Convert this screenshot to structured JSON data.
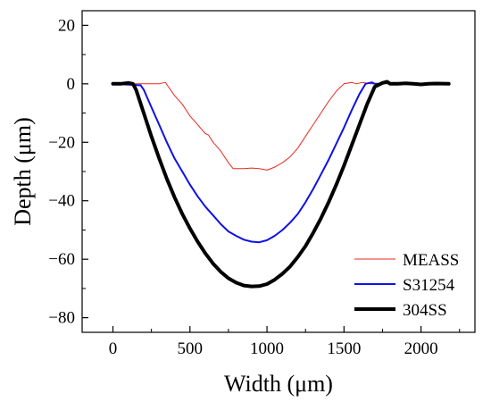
{
  "chart_data": {
    "type": "line",
    "xlabel": "Width (μm)",
    "ylabel": "Depth (μm)",
    "xlim": [
      -200,
      2350
    ],
    "ylim": [
      -85,
      25
    ],
    "x_ticks": [
      0,
      500,
      1000,
      1500,
      2000
    ],
    "y_ticks": [
      20,
      0,
      -20,
      -40,
      -60,
      -80
    ],
    "legend_position": "bottom-right",
    "grid": false,
    "series": [
      {
        "name": "MEASS",
        "color": "#e8281c",
        "line_width": 1,
        "x": [
          0,
          100,
          200,
          300,
          340,
          360,
          400,
          450,
          500,
          550,
          600,
          620,
          650,
          700,
          750,
          780,
          800,
          850,
          900,
          950,
          1000,
          1050,
          1100,
          1150,
          1200,
          1250,
          1300,
          1350,
          1400,
          1450,
          1500,
          1550,
          1580,
          1620,
          1670,
          1700,
          1750,
          1780,
          1850,
          2000,
          2180
        ],
        "y": [
          0,
          0,
          0,
          0,
          0.5,
          -1,
          -4,
          -7,
          -11,
          -14,
          -17,
          -17.5,
          -20,
          -23,
          -27,
          -29,
          -29,
          -29,
          -28.8,
          -29,
          -29.5,
          -28.5,
          -27,
          -25,
          -22,
          -18,
          -14,
          -10,
          -6,
          -2.5,
          0,
          0.5,
          0,
          0.5,
          0,
          0,
          0,
          0,
          0,
          0,
          0
        ]
      },
      {
        "name": "S31254",
        "color": "#1010e6",
        "line_width": 2,
        "x": [
          0,
          100,
          180,
          200,
          250,
          300,
          350,
          400,
          450,
          500,
          550,
          600,
          650,
          700,
          750,
          800,
          850,
          900,
          950,
          1000,
          1050,
          1100,
          1150,
          1200,
          1250,
          1300,
          1350,
          1400,
          1450,
          1500,
          1550,
          1600,
          1640,
          1680,
          1700,
          1720
        ],
        "y": [
          0,
          -0.3,
          -0.5,
          -2,
          -8,
          -14,
          -20,
          -25.5,
          -30,
          -34.5,
          -38.5,
          -42,
          -45,
          -48,
          -50.5,
          -52,
          -53.3,
          -54,
          -54.2,
          -53.5,
          -52,
          -50,
          -47.5,
          -44.5,
          -40.5,
          -36,
          -31,
          -26,
          -20.5,
          -15,
          -9,
          -3.5,
          0,
          0.5,
          0,
          0
        ]
      },
      {
        "name": "304SS",
        "color": "#000000",
        "line_width": 4,
        "x": [
          0,
          50,
          100,
          130,
          150,
          200,
          250,
          300,
          350,
          400,
          450,
          500,
          550,
          600,
          650,
          700,
          750,
          800,
          850,
          900,
          950,
          1000,
          1050,
          1100,
          1150,
          1200,
          1250,
          1300,
          1350,
          1400,
          1450,
          1500,
          1550,
          1600,
          1650,
          1700,
          1750,
          1780,
          1800,
          1850,
          1900,
          1950,
          2000,
          2050,
          2100,
          2180
        ],
        "y": [
          0,
          0,
          0.3,
          0,
          -2,
          -10,
          -18,
          -25.5,
          -32.5,
          -38.8,
          -44.5,
          -49.5,
          -54,
          -58,
          -61.5,
          -64.3,
          -66.5,
          -68,
          -69,
          -69.3,
          -69.2,
          -68.5,
          -67,
          -65,
          -62.5,
          -59.2,
          -55.5,
          -51,
          -46,
          -40.5,
          -34.5,
          -28,
          -21,
          -14,
          -7,
          -1,
          0.3,
          0.7,
          0,
          0,
          0.2,
          0,
          -0.2,
          0,
          0.1,
          0
        ]
      }
    ]
  }
}
